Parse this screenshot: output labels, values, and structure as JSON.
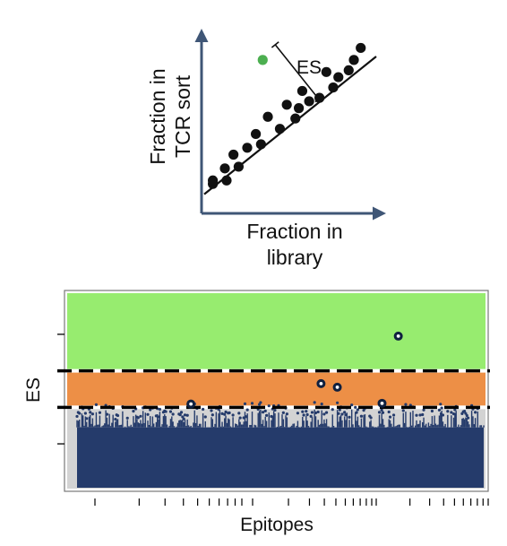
{
  "chart_data": [
    {
      "type": "scatter",
      "xlabel": [
        "Fraction in",
        "library"
      ],
      "ylabel": [
        "Fraction in",
        "TCR sort"
      ],
      "annotation": "ES",
      "colors": {
        "axis": "#3f5676",
        "points": "#111111",
        "outlier": "#4caf50"
      },
      "points": [
        [
          0.05,
          0.14
        ],
        [
          0.05,
          0.16
        ],
        [
          0.13,
          0.16
        ],
        [
          0.12,
          0.23
        ],
        [
          0.17,
          0.31
        ],
        [
          0.2,
          0.24
        ],
        [
          0.25,
          0.35
        ],
        [
          0.3,
          0.43
        ],
        [
          0.33,
          0.37
        ],
        [
          0.37,
          0.53
        ],
        [
          0.44,
          0.46
        ],
        [
          0.48,
          0.6
        ],
        [
          0.53,
          0.52
        ],
        [
          0.55,
          0.58
        ],
        [
          0.57,
          0.68
        ],
        [
          0.61,
          0.62
        ],
        [
          0.67,
          0.64
        ],
        [
          0.71,
          0.79
        ],
        [
          0.75,
          0.7
        ],
        [
          0.78,
          0.76
        ],
        [
          0.84,
          0.8
        ],
        [
          0.87,
          0.86
        ],
        [
          0.91,
          0.93
        ]
      ],
      "outlier": [
        0.34,
        0.86
      ],
      "fit_line": [
        [
          0.0,
          0.08
        ],
        [
          1.0,
          0.88
        ]
      ]
    },
    {
      "type": "scatter",
      "xlabel": "Epitopes",
      "ylabel": "ES",
      "thresholds": [
        1,
        2
      ],
      "ylim": [
        -1.3,
        4.2
      ],
      "colors": {
        "high_zone": "#97ec6f",
        "mid_zone": "#ed8f46",
        "low_zone": "#d3d3d3",
        "background_points": "#253b6b",
        "hits": "#10203f"
      },
      "hits": [
        {
          "epitope": 0.28,
          "es": 1.09
        },
        {
          "epitope": 0.6,
          "es": 1.65
        },
        {
          "epitope": 0.64,
          "es": 1.55
        },
        {
          "epitope": 0.75,
          "es": 1.11
        },
        {
          "epitope": 0.79,
          "es": 2.95
        }
      ]
    }
  ]
}
